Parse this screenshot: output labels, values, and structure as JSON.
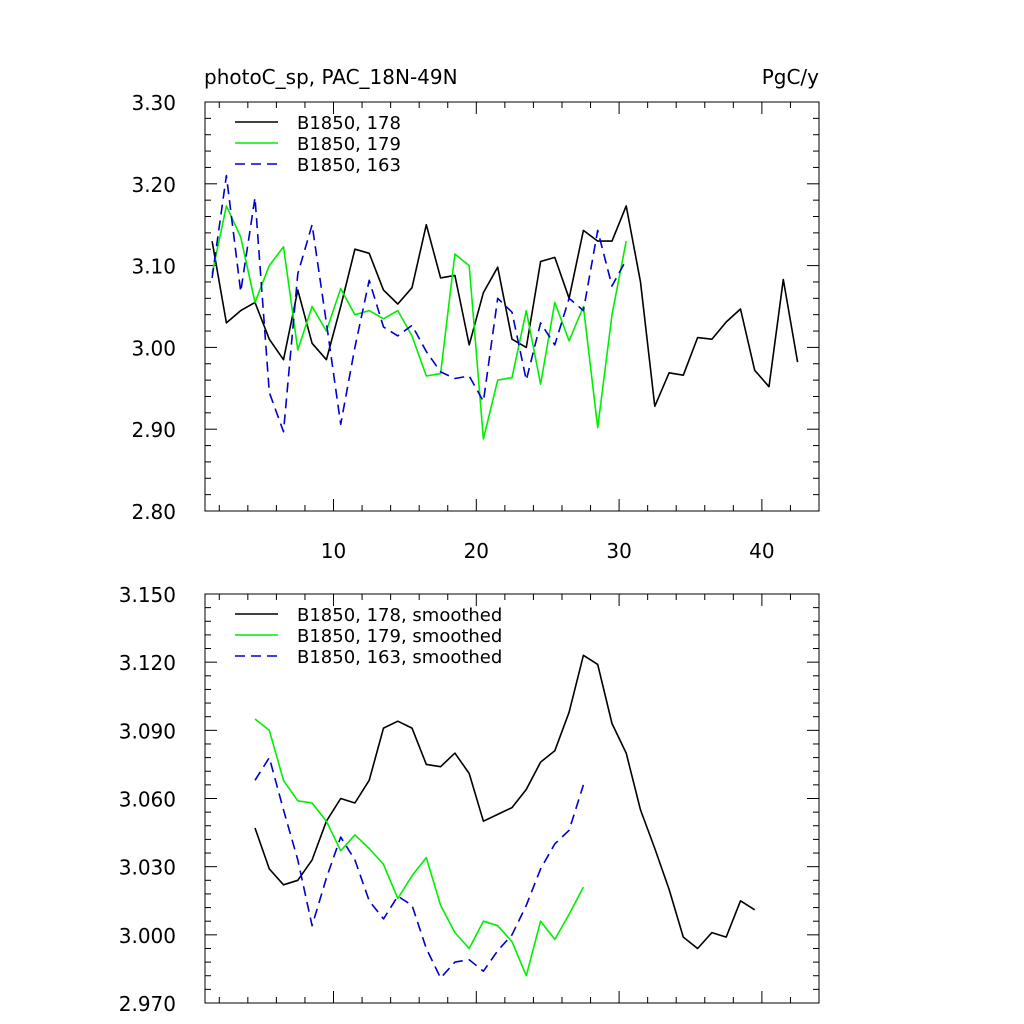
{
  "header": {
    "title": "photoC_sp, PAC_18N-49N",
    "units": "PgC/y"
  },
  "chart_data": [
    {
      "type": "line",
      "xlim": [
        1,
        44
      ],
      "ylim": [
        2.8,
        3.3
      ],
      "xticks": [
        10,
        20,
        30,
        40
      ],
      "xtick_labels": [
        "10",
        "20",
        "30",
        "40"
      ],
      "yticks": [
        2.8,
        2.9,
        3.0,
        3.1,
        3.2,
        3.3
      ],
      "ytick_labels": [
        "2.80",
        "2.90",
        "3.00",
        "3.10",
        "3.20",
        "3.30"
      ],
      "legend_position": "top-left",
      "series": [
        {
          "name": "B1850, 178",
          "color": "#000000",
          "dash": "solid",
          "x": [
            1.5,
            2.5,
            3.5,
            4.5,
            5.5,
            6.5,
            7.5,
            8.5,
            9.5,
            10.5,
            11.5,
            12.5,
            13.5,
            14.5,
            15.5,
            16.5,
            17.5,
            18.5,
            19.5,
            20.5,
            21.5,
            22.5,
            23.5,
            24.5,
            25.5,
            26.5,
            27.5,
            28.5,
            29.5,
            30.5,
            31.5,
            32.5,
            33.5,
            34.5,
            35.5,
            36.5,
            37.5,
            38.5,
            39.5,
            40.5,
            41.5,
            42.5
          ],
          "values": [
            3.13,
            3.03,
            3.045,
            3.055,
            3.01,
            2.985,
            3.07,
            3.005,
            2.985,
            3.05,
            3.12,
            3.115,
            3.07,
            3.053,
            3.073,
            3.15,
            3.085,
            3.088,
            3.003,
            3.067,
            3.098,
            3.01,
            3.0,
            3.105,
            3.11,
            3.06,
            3.143,
            3.13,
            3.13,
            3.173,
            3.08,
            2.928,
            2.969,
            2.966,
            3.012,
            3.01,
            3.031,
            3.047,
            2.972,
            2.952,
            3.083,
            2.982
          ]
        },
        {
          "name": "B1850, 179",
          "color": "#00ee00",
          "dash": "solid",
          "x": [
            1.5,
            2.5,
            3.5,
            4.5,
            5.5,
            6.5,
            7.5,
            8.5,
            9.5,
            10.5,
            11.5,
            12.5,
            13.5,
            14.5,
            15.5,
            16.5,
            17.5,
            18.5,
            19.5,
            20.5,
            21.5,
            22.5,
            23.5,
            24.5,
            25.5,
            26.5,
            27.5,
            28.5,
            29.5,
            30.5
          ],
          "values": [
            3.09,
            3.173,
            3.135,
            3.055,
            3.1,
            3.123,
            2.997,
            3.05,
            3.02,
            3.072,
            3.04,
            3.045,
            3.035,
            3.045,
            3.014,
            2.965,
            2.968,
            3.114,
            3.1,
            2.888,
            2.96,
            2.963,
            3.045,
            2.955,
            3.055,
            3.008,
            3.05,
            2.902,
            3.04,
            3.13
          ]
        },
        {
          "name": "B1850, 163",
          "color": "#0000cc",
          "dash": "dashed",
          "x": [
            1.5,
            2.5,
            3.5,
            4.5,
            5.5,
            6.5,
            7.5,
            8.5,
            9.5,
            10.5,
            11.5,
            12.5,
            13.5,
            14.5,
            15.5,
            16.5,
            17.5,
            18.5,
            19.5,
            20.5,
            21.5,
            22.5,
            23.5,
            24.5,
            25.5,
            26.5,
            27.5,
            28.5,
            29.5,
            30.5
          ],
          "values": [
            3.085,
            3.21,
            3.068,
            3.183,
            2.945,
            2.897,
            3.09,
            3.15,
            3.03,
            2.906,
            3.0,
            3.082,
            3.025,
            3.014,
            3.027,
            2.995,
            2.97,
            2.962,
            2.965,
            2.934,
            3.06,
            3.043,
            2.96,
            3.03,
            3.003,
            3.06,
            3.045,
            3.143,
            3.075,
            3.107
          ]
        }
      ]
    },
    {
      "type": "line",
      "xlim": [
        1,
        44
      ],
      "ylim": [
        2.97,
        3.15
      ],
      "xticks": [
        10,
        20,
        30,
        40
      ],
      "xtick_labels": [
        "",
        "",
        "",
        ""
      ],
      "yticks": [
        2.97,
        3.0,
        3.03,
        3.06,
        3.09,
        3.12,
        3.15
      ],
      "ytick_labels": [
        "2.970",
        "3.000",
        "3.030",
        "3.060",
        "3.090",
        "3.120",
        "3.150"
      ],
      "legend_position": "top-left",
      "series": [
        {
          "name": "B1850, 178, smoothed",
          "color": "#000000",
          "dash": "solid",
          "x": [
            4.5,
            5.5,
            6.5,
            7.5,
            8.5,
            9.5,
            10.5,
            11.5,
            12.5,
            13.5,
            14.5,
            15.5,
            16.5,
            17.5,
            18.5,
            19.5,
            20.5,
            21.5,
            22.5,
            23.5,
            24.5,
            25.5,
            26.5,
            27.5,
            28.5,
            29.5,
            30.5,
            31.5,
            32.5,
            33.5,
            34.5,
            35.5,
            36.5,
            37.5,
            38.5,
            39.5
          ],
          "values": [
            3.047,
            3.029,
            3.022,
            3.024,
            3.033,
            3.05,
            3.06,
            3.058,
            3.068,
            3.091,
            3.094,
            3.091,
            3.075,
            3.074,
            3.08,
            3.071,
            3.05,
            3.053,
            3.056,
            3.064,
            3.076,
            3.081,
            3.098,
            3.123,
            3.119,
            3.093,
            3.08,
            3.055,
            3.038,
            3.02,
            2.999,
            2.994,
            3.001,
            2.999,
            3.015,
            3.011
          ]
        },
        {
          "name": "B1850, 179, smoothed",
          "color": "#00ee00",
          "dash": "solid",
          "x": [
            4.5,
            5.5,
            6.5,
            7.5,
            8.5,
            9.5,
            10.5,
            11.5,
            12.5,
            13.5,
            14.5,
            15.5,
            16.5,
            17.5,
            18.5,
            19.5,
            20.5,
            21.5,
            22.5,
            23.5,
            24.5,
            25.5,
            26.5,
            27.5
          ],
          "values": [
            3.095,
            3.09,
            3.068,
            3.059,
            3.058,
            3.05,
            3.037,
            3.044,
            3.038,
            3.031,
            3.016,
            3.026,
            3.034,
            3.013,
            3.001,
            2.994,
            3.006,
            3.004,
            2.997,
            2.982,
            3.006,
            2.998,
            3.009,
            3.021
          ]
        },
        {
          "name": "B1850, 163, smoothed",
          "color": "#0000cc",
          "dash": "dashed",
          "x": [
            4.5,
            5.5,
            6.5,
            7.5,
            8.5,
            9.5,
            10.5,
            11.5,
            12.5,
            13.5,
            14.5,
            15.5,
            16.5,
            17.5,
            18.5,
            19.5,
            20.5,
            21.5,
            22.5,
            23.5,
            24.5,
            25.5,
            26.5,
            27.5
          ],
          "values": [
            3.068,
            3.078,
            3.055,
            3.033,
            3.004,
            3.025,
            3.043,
            3.033,
            3.015,
            3.007,
            3.017,
            3.013,
            2.994,
            2.981,
            2.988,
            2.989,
            2.984,
            2.993,
            3.0,
            3.013,
            3.029,
            3.04,
            3.046,
            3.066
          ]
        }
      ]
    }
  ]
}
